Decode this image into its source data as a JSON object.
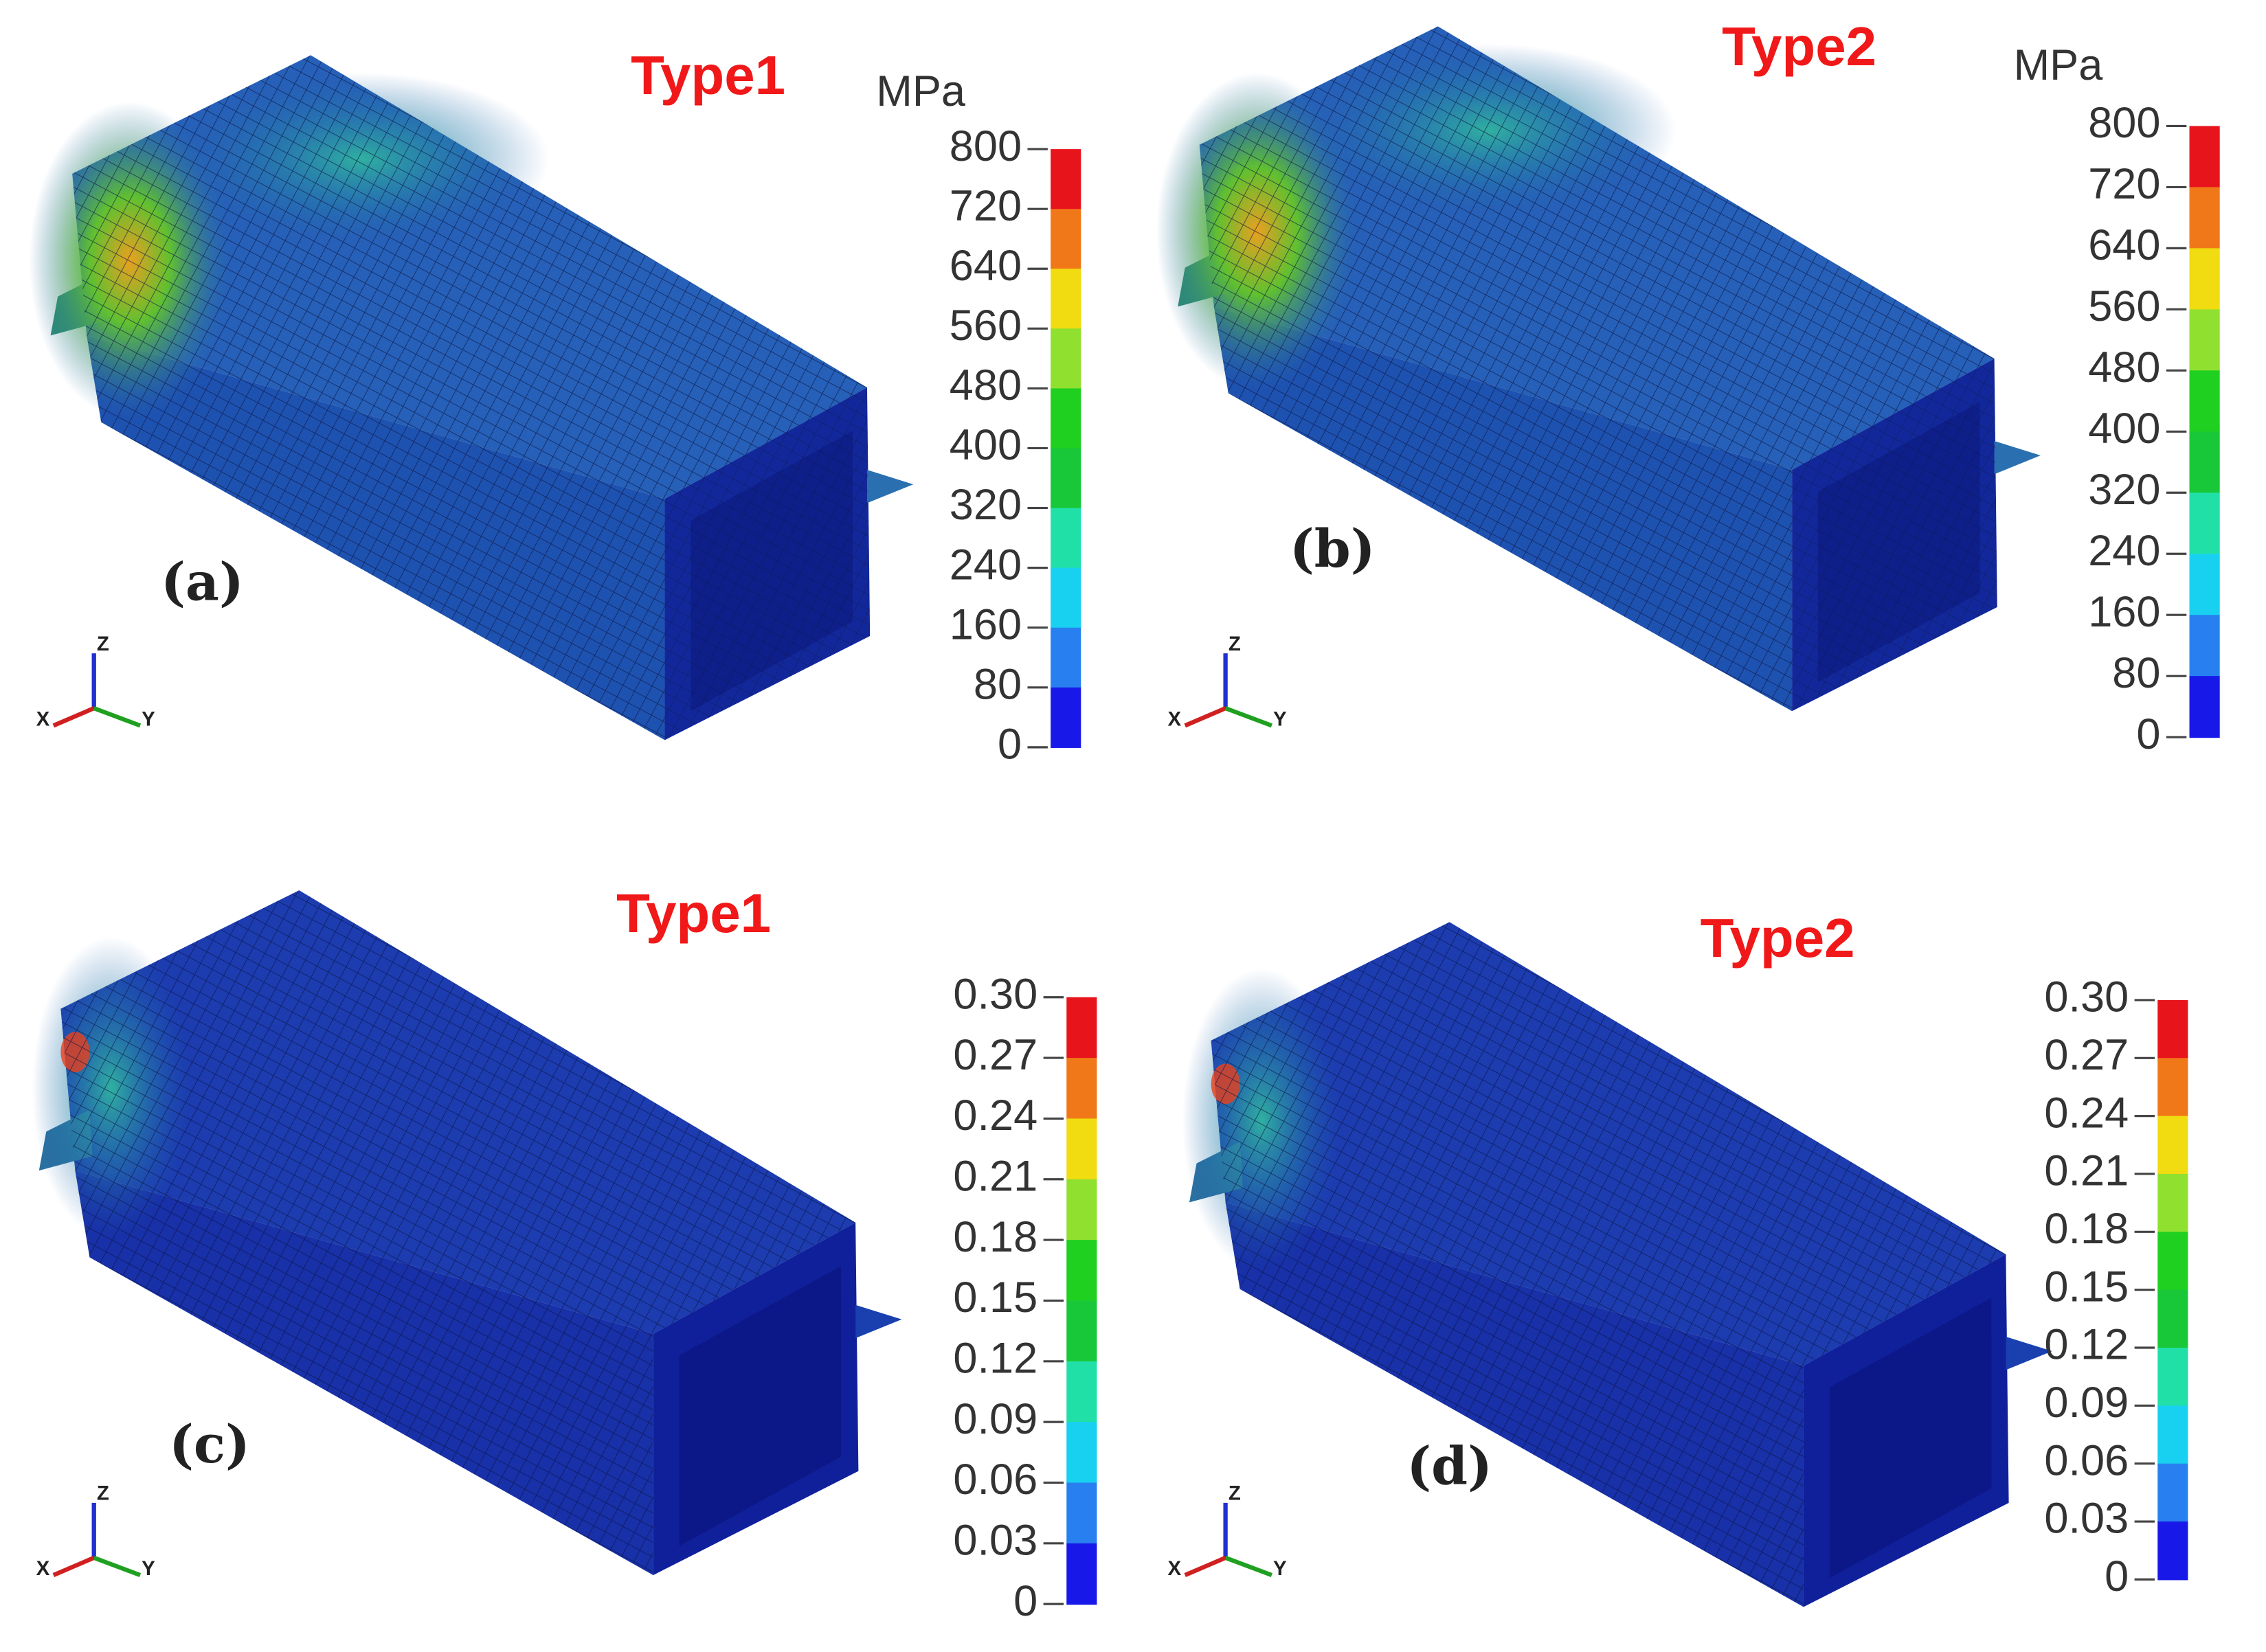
{
  "panels": [
    {
      "title": "Type1",
      "label": "(a)",
      "unit": "MPa",
      "scale": [
        "800",
        "720",
        "640",
        "560",
        "480",
        "400",
        "320",
        "240",
        "160",
        "80",
        "0"
      ]
    },
    {
      "title": "Type2",
      "label": "(b)",
      "unit": "MPa",
      "scale": [
        "800",
        "720",
        "640",
        "560",
        "480",
        "400",
        "320",
        "240",
        "160",
        "80",
        "0"
      ]
    },
    {
      "title": "Type1",
      "label": "(c)",
      "scale": [
        "0.30",
        "0.27",
        "0.24",
        "0.21",
        "0.18",
        "0.15",
        "0.12",
        "0.09",
        "0.06",
        "0.03",
        "0"
      ]
    },
    {
      "title": "Type2",
      "label": "(d)",
      "scale": [
        "0.30",
        "0.27",
        "0.24",
        "0.21",
        "0.18",
        "0.15",
        "0.12",
        "0.09",
        "0.06",
        "0.03",
        "0"
      ]
    }
  ],
  "triad": {
    "z": "Z",
    "x": "X",
    "y": "Y"
  },
  "colorbar_colors": [
    "#e8141c",
    "#f07818",
    "#f0dc10",
    "#90e030",
    "#20d020",
    "#18c838",
    "#20e0a8",
    "#18d0f0",
    "#2880f0",
    "#1818e8"
  ]
}
